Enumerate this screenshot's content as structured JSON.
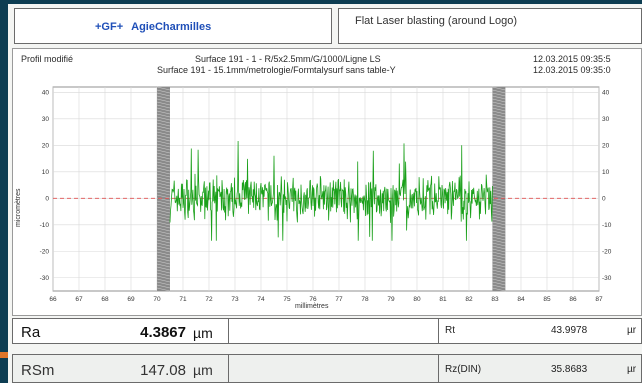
{
  "header": {
    "logo_prefix": "+GF+",
    "logo_name": "AgieCharmilles",
    "title": "Flat Laser blasting (around Logo)"
  },
  "panel": {
    "label": "Profil modifié",
    "surface_line_1": "Surface 191 - 1 - R/5x2.5mm/G/1000/Ligne LS",
    "surface_line_2": "Surface 191 - 15.1mm/metrologie/Formtalysurf sans table-Y",
    "date_1": "12.03.2015 09:35:5",
    "date_2": "12.03.2015 09:35:0"
  },
  "chart_data": {
    "type": "line",
    "xlabel": "millimètres",
    "ylabel": "micromètres",
    "xlim": [
      66,
      87
    ],
    "ylim": [
      -35,
      42
    ],
    "x_ticks": [
      66,
      67,
      68,
      69,
      70,
      71,
      72,
      73,
      74,
      75,
      76,
      77,
      78,
      79,
      80,
      81,
      82,
      83,
      84,
      85,
      86,
      87
    ],
    "y_ticks": [
      -30,
      -20,
      -10,
      0,
      10,
      20,
      30,
      40
    ],
    "y_tick_labels_left": [
      "-30",
      "-20",
      "-10",
      "0",
      "10",
      "20",
      "30",
      "40"
    ],
    "y_tick_labels_right": [
      "-30",
      "-20",
      "-10",
      "0",
      "10",
      "20",
      "30",
      "40"
    ],
    "excluded_zones": [
      [
        70.0,
        70.5
      ],
      [
        82.9,
        83.4
      ]
    ],
    "zero_line_color": "#e05050",
    "series_color": "#1aa01a",
    "profile": {
      "x_start": 70.5,
      "x_end": 82.9,
      "amplitude_typical": 8,
      "peak_max": 23,
      "trough_min": -16
    }
  },
  "results": {
    "row1": {
      "name": "Ra",
      "value": "4.3867",
      "unit": "µm",
      "name2": "Rt",
      "value2": "43.9978",
      "unit2": "µr"
    },
    "row2": {
      "name": "RSm",
      "value": "147.08",
      "unit": "µm",
      "name2": "Rz(DIN)",
      "value2": "35.8683",
      "unit2": "µr"
    }
  }
}
